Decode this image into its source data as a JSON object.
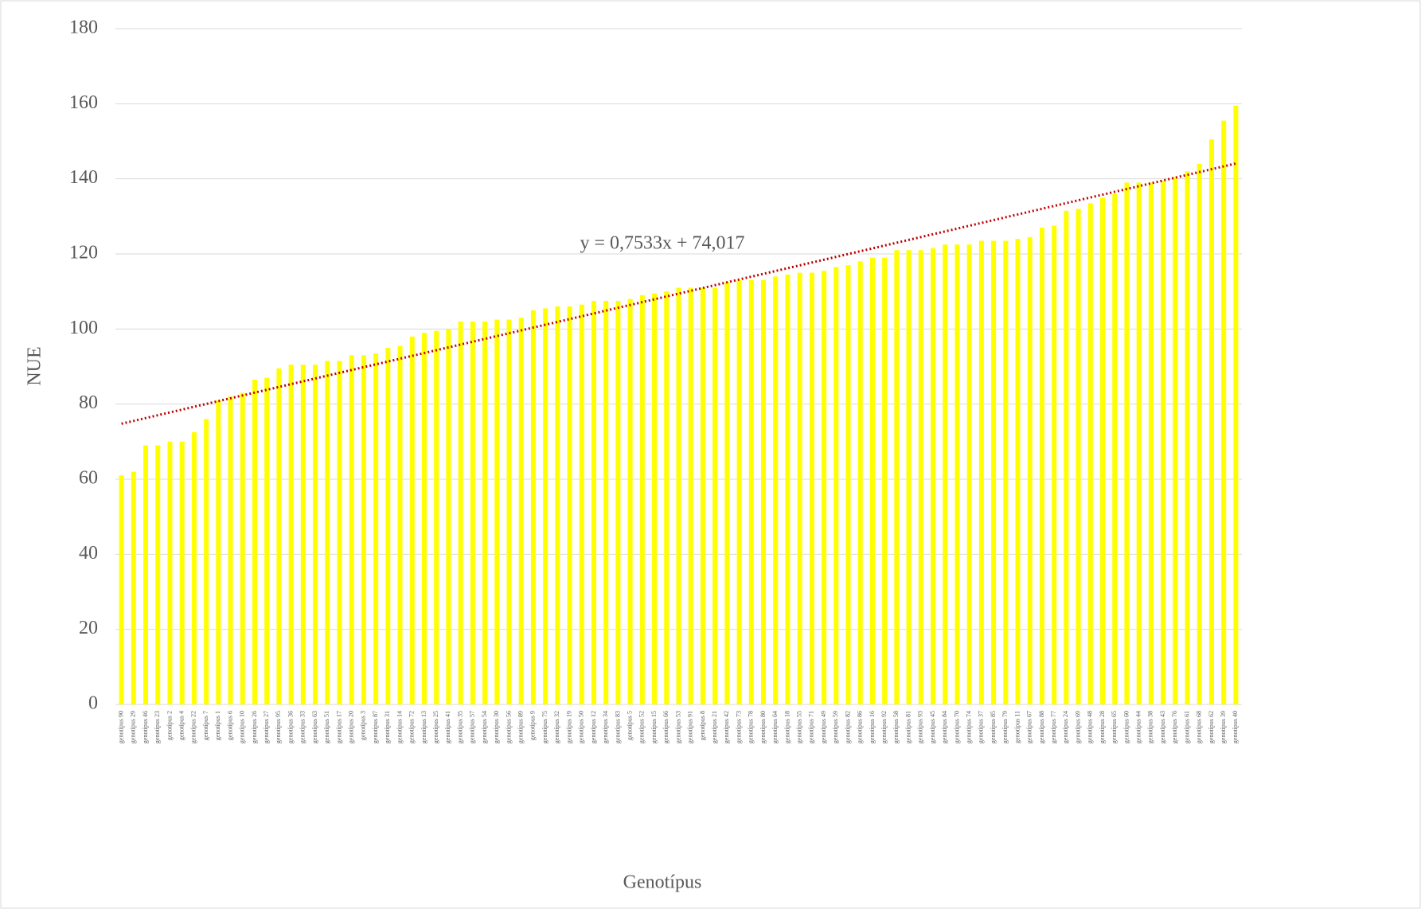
{
  "chart_data": {
    "type": "bar",
    "x_label": "Genotípus",
    "y_label": "NUE",
    "categories": [
      "genotípus 90",
      "genotípus 29",
      "genotípus 46",
      "genotípus 23",
      "genotípus 2",
      "genotípus 4",
      "genotípus 22",
      "genotípus 7",
      "genotípus 1",
      "genotípus 6",
      "genotípus 10",
      "genotípus 26",
      "genotípus 27",
      "genotípus 95",
      "genotípus 36",
      "genotípus 33",
      "genotípus 63",
      "genotípus 51",
      "genotípus 17",
      "genotípus 20",
      "genotípus 3",
      "genotípus 87",
      "genotípus 31",
      "genotípus 14",
      "genotípus 72",
      "genotípus 13",
      "genotípus 25",
      "genotípus 41",
      "genotípus 35",
      "genotípus 57",
      "genotípus 54",
      "genotípus 30",
      "genotípus 56",
      "genotípus 89",
      "genotípus 9",
      "genotípus 75",
      "genotípus 32",
      "genotípus 19",
      "genotípus 50",
      "genotípus 12",
      "genotípus 34",
      "genotípus 83",
      "genotípus 5",
      "genotípus 52",
      "genotípus 15",
      "genotípus 66",
      "genotípus 53",
      "genotípus 91",
      "genotípus 8",
      "genotípus 21",
      "genotípus 42",
      "genotípus 73",
      "genotípus 78",
      "genotípus 80",
      "genotípus 64",
      "genotípus 18",
      "genotípus 55",
      "genotípus 71",
      "genotípus 49",
      "genotípus 59",
      "genotípus 82",
      "genotípus 86",
      "genotípus 16",
      "genotípus 92",
      "genotípus 58",
      "genotípus 81",
      "genotípus 93",
      "genotípus 45",
      "genotípus 84",
      "genotípus 70",
      "genotípus 74",
      "genotípus 37",
      "genotípus 85",
      "genotípus 79",
      "genotípus 11",
      "genotípus 67",
      "genotípus 88",
      "genotípus 77",
      "genotípus 24",
      "genotípus 69",
      "genotípus 48",
      "genotípus 28",
      "genotípus 65",
      "genotípus 60",
      "genotípus 44",
      "genotípus 38",
      "genotípus 43",
      "genotípus 76",
      "genotípus 61",
      "genotípus 68",
      "genotípus 62",
      "genotípus 39",
      "genotípus 40"
    ],
    "values": [
      61,
      62,
      69,
      69,
      70,
      70,
      72.5,
      76,
      81,
      82,
      83,
      86.5,
      87,
      89.5,
      90.5,
      90.5,
      90.5,
      91.5,
      91.5,
      93,
      93,
      93.5,
      95,
      95.5,
      98,
      99,
      99.5,
      100,
      102,
      102,
      102,
      102.5,
      102.5,
      103,
      105,
      105.5,
      106,
      106,
      106.5,
      107.5,
      107.5,
      107.5,
      108,
      109,
      109.5,
      110,
      111,
      111,
      111,
      111,
      112.5,
      113,
      113,
      113,
      114,
      114.5,
      115,
      115,
      115.5,
      116.5,
      117,
      118,
      119,
      119,
      121,
      121,
      121,
      121.5,
      122.5,
      122.5,
      122.5,
      123.5,
      123.5,
      123.5,
      124,
      124.5,
      127,
      127.5,
      131.5,
      132,
      133.5,
      135,
      136,
      139,
      139,
      139,
      139.5,
      140.5,
      142,
      144,
      150.5,
      155.5,
      159.5
    ],
    "color": "#ffff00",
    "ylim": [
      0,
      180
    ],
    "yticks": [
      0,
      20,
      40,
      60,
      80,
      100,
      120,
      140,
      160,
      180
    ],
    "grid": true,
    "trendline": {
      "label": "y = 0,7533x + 74,017",
      "slope": 0.7533,
      "intercept": 74.017,
      "color": "#c00000"
    }
  }
}
